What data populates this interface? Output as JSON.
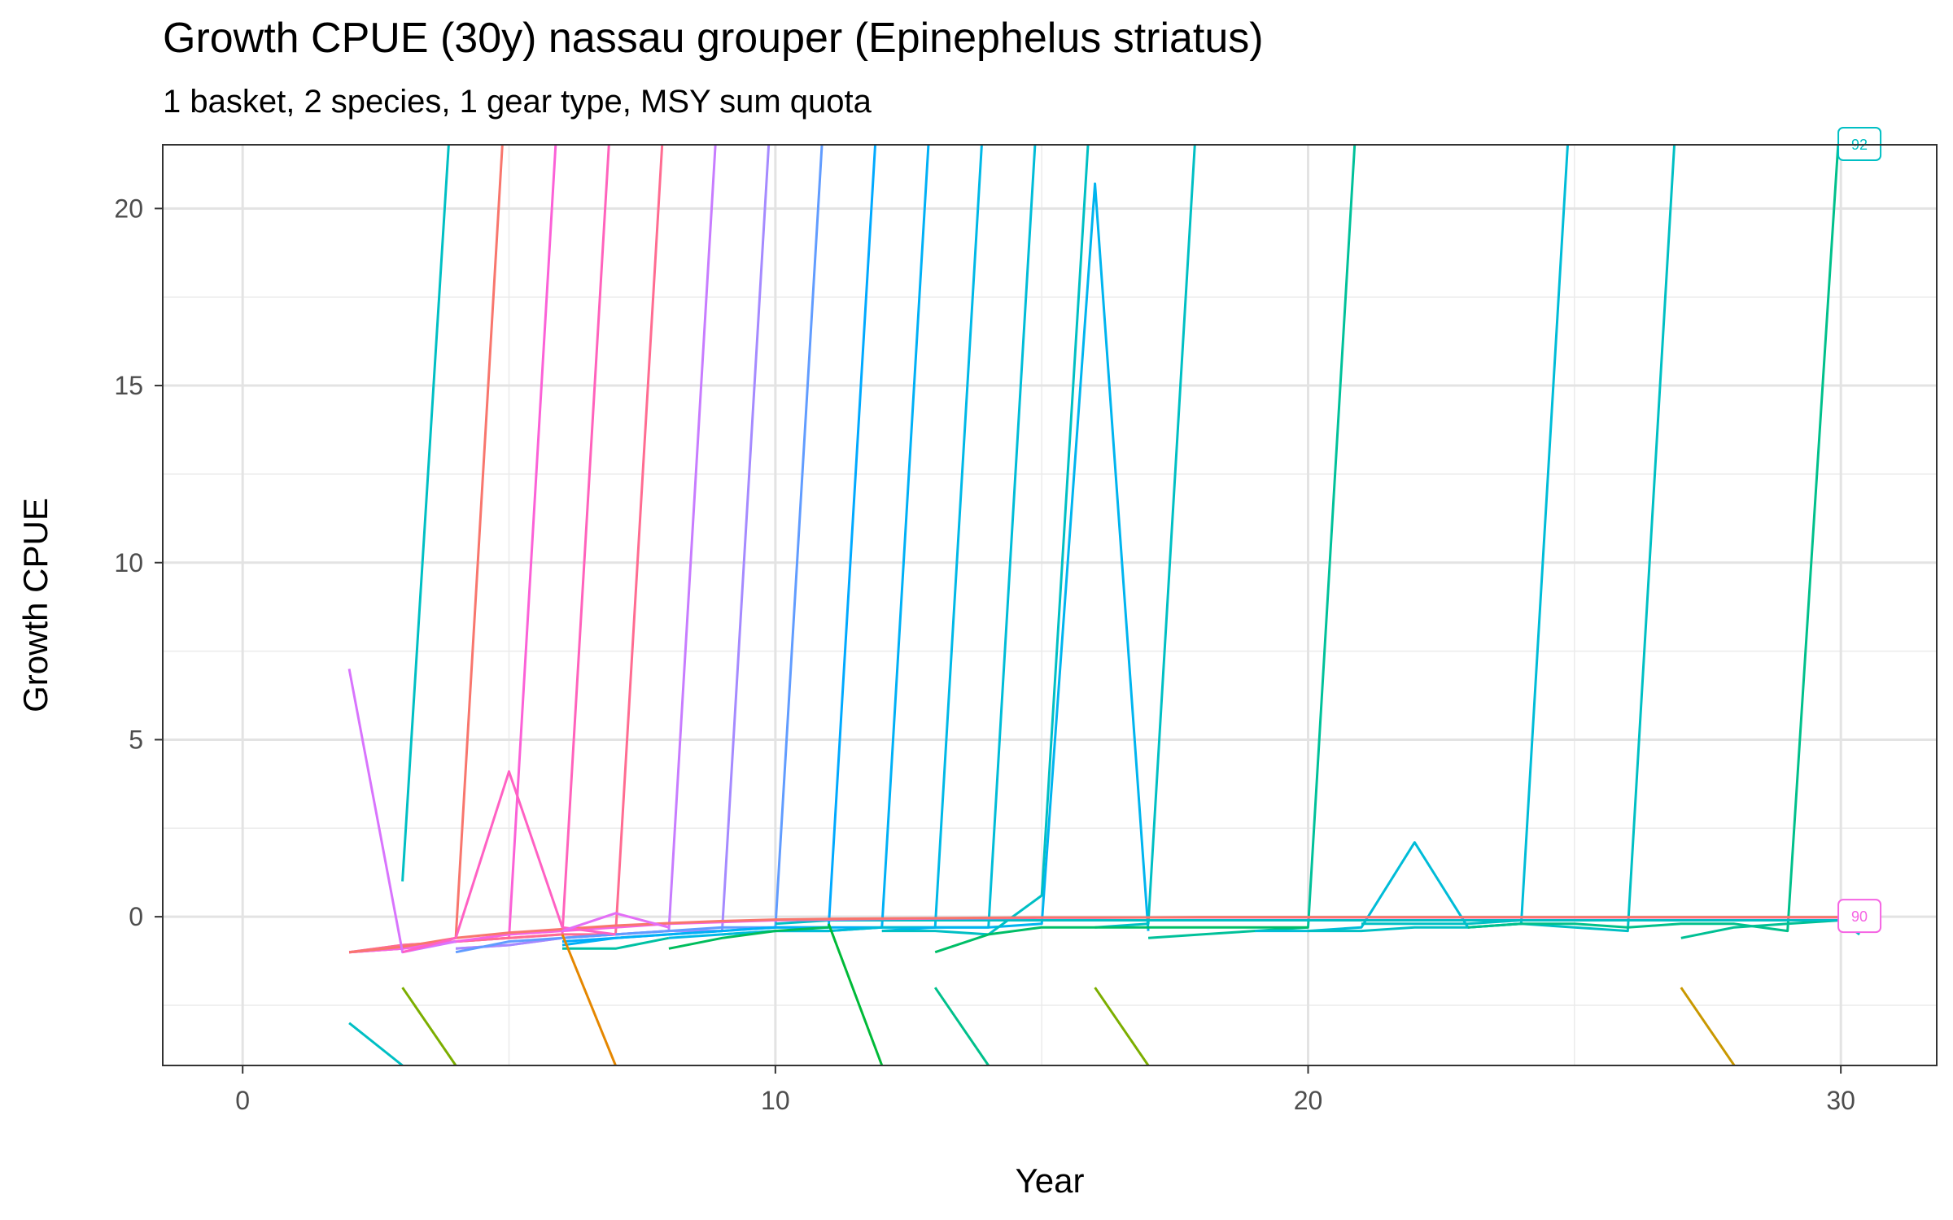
{
  "chart_data": {
    "type": "line",
    "title": "Growth CPUE (30y) nassau grouper (Epinephelus striatus)",
    "subtitle": "1 basket, 2 species, 1 gear type, MSY sum quota",
    "xlabel": "Year",
    "ylabel": "Growth CPUE",
    "xlim": [
      -1.5,
      31.8
    ],
    "ylim": [
      -4.2,
      21.8
    ],
    "x_ticks": [
      0,
      10,
      20,
      30
    ],
    "y_ticks": [
      0,
      5,
      10,
      15,
      20
    ],
    "grid": true,
    "legend": "none",
    "end_labels": [
      {
        "text": "90",
        "x": 30.35,
        "y": 0,
        "color": "#f564e3"
      },
      {
        "text": "92",
        "x": 30.35,
        "y": 21.8,
        "color": "#00bfc4"
      }
    ],
    "series": [
      {
        "color": "#00bfc4",
        "x": [
          3,
          4
        ],
        "y": [
          1.0,
          25
        ]
      },
      {
        "color": "#f8766d",
        "x": [
          2,
          3,
          4,
          5
        ],
        "y": [
          -1.0,
          -0.9,
          -0.6,
          25
        ]
      },
      {
        "color": "#fb61d7",
        "x": [
          2,
          3,
          4,
          5,
          6
        ],
        "y": [
          -1.0,
          -0.9,
          -0.7,
          -0.6,
          25
        ]
      },
      {
        "color": "#ff62bc",
        "x": [
          2,
          3,
          4,
          5,
          6,
          7
        ],
        "y": [
          -1.0,
          -0.8,
          -0.7,
          -0.6,
          -0.5,
          25
        ]
      },
      {
        "color": "#ff6c91",
        "x": [
          2,
          3,
          4,
          5,
          6,
          7,
          8
        ],
        "y": [
          -1.0,
          -0.8,
          -0.7,
          -0.6,
          -0.5,
          -0.5,
          25
        ]
      },
      {
        "color": "#c77cff",
        "x": [
          4,
          5,
          6,
          7,
          8,
          9
        ],
        "y": [
          -0.9,
          -0.8,
          -0.6,
          -0.5,
          -0.4,
          25
        ]
      },
      {
        "color": "#a58aff",
        "x": [
          4,
          5,
          6,
          7,
          8,
          9,
          10
        ],
        "y": [
          -0.9,
          -0.8,
          -0.6,
          -0.5,
          -0.4,
          -0.4,
          25
        ]
      },
      {
        "color": "#619cff",
        "x": [
          4,
          5,
          6,
          7,
          8,
          9,
          10,
          11
        ],
        "y": [
          -1.0,
          -0.7,
          -0.6,
          -0.5,
          -0.4,
          -0.3,
          -0.3,
          25
        ]
      },
      {
        "color": "#00a9ff",
        "x": [
          6,
          7,
          8,
          9,
          10,
          11,
          12
        ],
        "y": [
          -0.7,
          -0.6,
          -0.5,
          -0.4,
          -0.3,
          -0.3,
          25
        ]
      },
      {
        "color": "#00b0f6",
        "x": [
          6,
          7,
          8,
          9,
          10,
          11,
          12,
          13
        ],
        "y": [
          -0.8,
          -0.6,
          -0.5,
          -0.4,
          -0.3,
          -0.3,
          -0.3,
          25
        ]
      },
      {
        "color": "#00b8e7",
        "x": [
          8,
          9,
          10,
          11,
          12,
          13,
          14
        ],
        "y": [
          -0.6,
          -0.5,
          -0.4,
          -0.4,
          -0.3,
          -0.3,
          25
        ]
      },
      {
        "color": "#00bcd8",
        "x": [
          9,
          10,
          11,
          12,
          13,
          14,
          15
        ],
        "y": [
          -0.5,
          -0.4,
          -0.4,
          -0.3,
          -0.3,
          -0.3,
          25
        ]
      },
      {
        "color": "#00b4ef",
        "x": [
          12,
          13,
          14,
          15,
          16,
          17
        ],
        "y": [
          -0.4,
          -0.3,
          -0.3,
          -0.2,
          20.7,
          -0.4
        ]
      },
      {
        "color": "#00bfc4",
        "x": [
          12,
          13,
          14,
          15,
          16
        ],
        "y": [
          -0.4,
          -0.4,
          -0.5,
          0.6,
          25
        ]
      },
      {
        "color": "#00bfc4",
        "x": [
          16,
          17,
          18
        ],
        "y": [
          -0.3,
          -0.2,
          25
        ]
      },
      {
        "color": "#00c19a",
        "x": [
          17,
          18,
          19,
          20,
          21
        ],
        "y": [
          -0.6,
          -0.5,
          -0.4,
          -0.3,
          25
        ]
      },
      {
        "color": "#00bcd8",
        "x": [
          19,
          20,
          21,
          22,
          23,
          24,
          25
        ],
        "y": [
          -0.4,
          -0.4,
          -0.3,
          2.1,
          -0.3,
          -0.2,
          25
        ]
      },
      {
        "color": "#00bfc4",
        "x": [
          20,
          21,
          22,
          23,
          24,
          25,
          26,
          27
        ],
        "y": [
          -0.4,
          -0.4,
          -0.3,
          -0.3,
          -0.2,
          -0.3,
          -0.4,
          25
        ]
      },
      {
        "color": "#00c08b",
        "x": [
          23,
          24,
          25,
          26,
          27,
          28,
          29,
          30
        ],
        "y": [
          -0.3,
          -0.2,
          -0.2,
          -0.3,
          -0.2,
          -0.2,
          -0.4,
          23
        ]
      },
      {
        "color": "#00be67",
        "x": [
          13,
          14,
          15,
          16,
          17,
          18,
          19,
          20
        ],
        "y": [
          -1.0,
          -0.5,
          -0.3,
          -0.3,
          -0.3,
          -0.3,
          -0.3,
          -0.3
        ]
      },
      {
        "color": "#00c094",
        "x": [
          27,
          28,
          29,
          30
        ],
        "y": [
          -0.6,
          -0.3,
          -0.2,
          -0.1
        ]
      },
      {
        "color": "#00bfc4",
        "x": [
          21,
          22,
          23,
          24,
          25,
          26,
          27,
          28,
          29,
          30,
          30.35
        ],
        "y": [
          -0.2,
          -0.2,
          -0.2,
          -0.1,
          -0.1,
          -0.1,
          -0.1,
          -0.1,
          -0.1,
          -0.1,
          -0.5
        ]
      },
      {
        "color": "#00bfc4",
        "x": [
          10,
          11,
          12,
          13,
          14,
          15,
          16,
          17,
          18,
          19,
          20,
          21,
          22,
          23,
          24,
          25,
          26,
          27,
          28,
          29,
          30,
          30.35
        ],
        "y": [
          -0.2,
          -0.1,
          -0.1,
          -0.1,
          -0.1,
          -0.1,
          -0.1,
          -0.1,
          -0.1,
          -0.1,
          -0.1,
          -0.1,
          -0.1,
          -0.1,
          -0.1,
          -0.1,
          -0.1,
          -0.1,
          -0.1,
          -0.1,
          -0.1,
          -0.3
        ]
      },
      {
        "color": "#f564e3",
        "x": [
          2,
          3,
          4,
          5,
          6,
          7,
          8,
          9,
          10,
          11,
          12,
          13,
          14,
          15,
          16,
          17,
          18,
          19,
          20,
          21,
          22,
          23,
          24,
          25,
          26,
          27,
          28,
          29,
          30
        ],
        "y": [
          -1.0,
          -0.9,
          -0.7,
          -0.5,
          -0.4,
          -0.3,
          -0.2,
          -0.15,
          -0.1,
          -0.08,
          -0.06,
          -0.05,
          -0.04,
          -0.03,
          -0.03,
          -0.02,
          -0.02,
          -0.02,
          -0.02,
          -0.02,
          -0.02,
          -0.02,
          -0.02,
          -0.02,
          -0.02,
          -0.02,
          -0.02,
          -0.02,
          -0.02
        ]
      },
      {
        "color": "#f8766d",
        "x": [
          2,
          3,
          4,
          5,
          6,
          7,
          8,
          9,
          10,
          11,
          12,
          13,
          14,
          15,
          16,
          17,
          18,
          19,
          20,
          21,
          22,
          23,
          24,
          25,
          26,
          27,
          28,
          29,
          30
        ],
        "y": [
          -1.0,
          -0.85,
          -0.6,
          -0.45,
          -0.35,
          -0.25,
          -0.18,
          -0.12,
          -0.08,
          -0.06,
          -0.05,
          -0.04,
          -0.03,
          -0.02,
          -0.02,
          -0.02,
          -0.01,
          -0.01,
          -0.01,
          -0.01,
          -0.01,
          -0.01,
          -0.01,
          -0.01,
          -0.01,
          -0.01,
          -0.01,
          -0.01,
          -0.01
        ]
      },
      {
        "color": "#d874fd",
        "x": [
          2,
          3,
          4
        ],
        "y": [
          7.0,
          -1.0,
          -0.7
        ]
      },
      {
        "color": "#ff61c3",
        "x": [
          3,
          4,
          5,
          6,
          7
        ],
        "y": [
          -1.0,
          -0.6,
          4.1,
          -0.3,
          -0.5
        ]
      },
      {
        "color": "#e36ef6",
        "x": [
          6,
          7,
          8
        ],
        "y": [
          -0.4,
          0.1,
          -0.3
        ]
      },
      {
        "color": "#00c1a3",
        "x": [
          6,
          7,
          8
        ],
        "y": [
          -0.9,
          -0.9,
          -0.6
        ]
      },
      {
        "color": "#00bd5c",
        "x": [
          8,
          9,
          10,
          11
        ],
        "y": [
          -0.9,
          -0.6,
          -0.4,
          -0.3
        ]
      },
      {
        "color": "#00bfc4",
        "x": [
          2,
          3
        ],
        "y": [
          -3.0,
          -4.2
        ]
      },
      {
        "color": "#7cae00",
        "x": [
          3,
          4
        ],
        "y": [
          -2.0,
          -4.2
        ]
      },
      {
        "color": "#e58700",
        "x": [
          6,
          7
        ],
        "y": [
          -0.5,
          -4.2
        ]
      },
      {
        "color": "#00ba38",
        "x": [
          11,
          12
        ],
        "y": [
          -0.2,
          -4.2
        ]
      },
      {
        "color": "#00c08b",
        "x": [
          13,
          14
        ],
        "y": [
          -2.0,
          -4.2
        ]
      },
      {
        "color": "#7cae00",
        "x": [
          16,
          17
        ],
        "y": [
          -2.0,
          -4.2
        ]
      },
      {
        "color": "#c99800",
        "x": [
          27,
          28
        ],
        "y": [
          -2.0,
          -4.2
        ]
      }
    ]
  }
}
